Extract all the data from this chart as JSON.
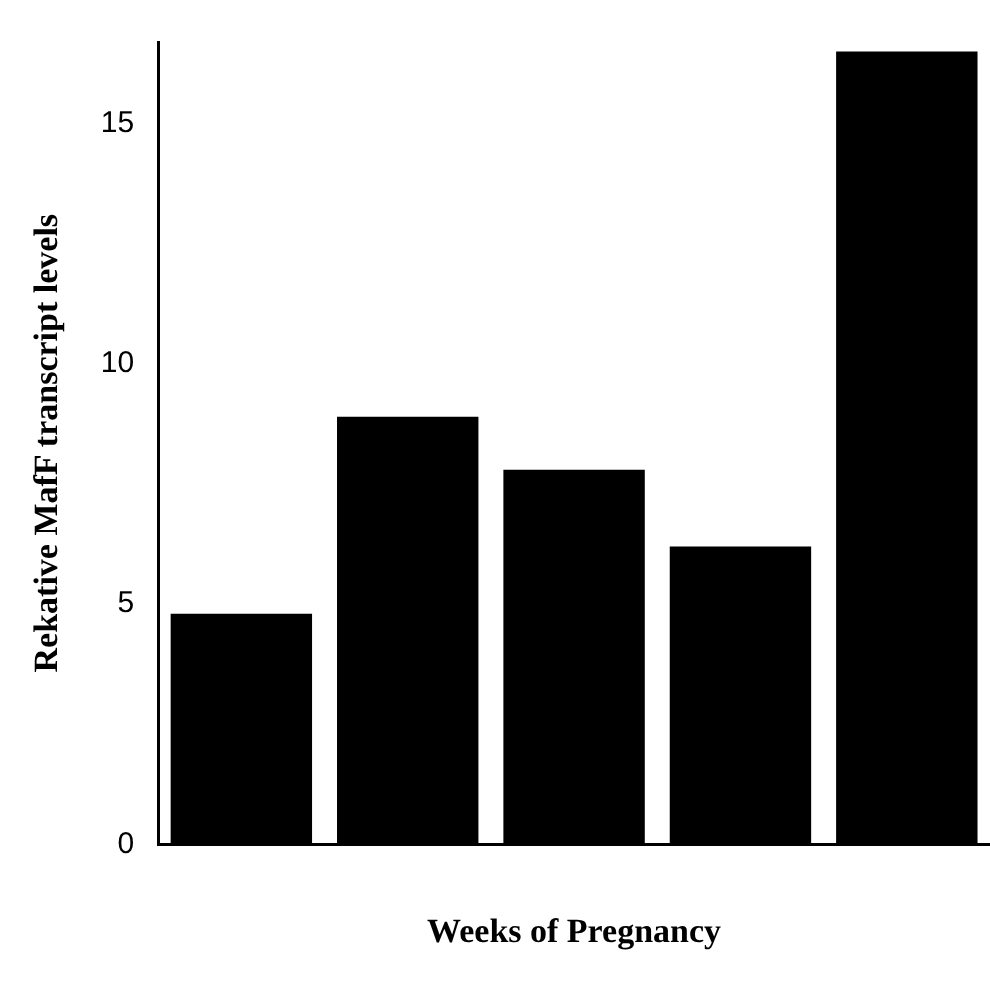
{
  "chart_data": {
    "type": "bar",
    "xlabel": "Weeks of Pregnancy",
    "ylabel": "Rekative MafF transcript levels",
    "categories": [
      null,
      null,
      null,
      null,
      null
    ],
    "values": [
      4.8,
      8.9,
      7.8,
      6.2,
      16.5
    ],
    "color": "#000000",
    "ylim": [
      0,
      16.7
    ],
    "yticks": [
      0,
      5,
      10,
      15
    ],
    "grid": false,
    "legend": false
  }
}
